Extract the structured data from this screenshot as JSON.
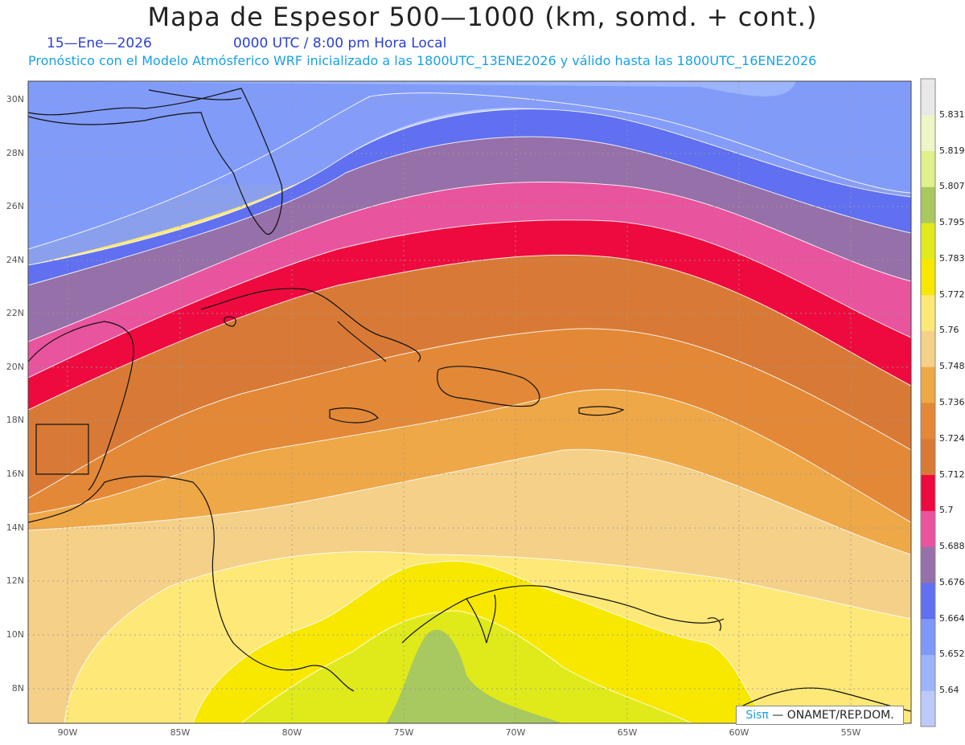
{
  "title": "Mapa de Espesor 500—1000 (km, somd. + cont.)",
  "date": "15—Ene—2026",
  "time": "0000 UTC / 8:00 pm Hora Local",
  "subtitle": "Pronóstico con el Modelo Atmósferico WRF inicializado a las 1800UTC_13ENE2026 y válido hasta las  1800UTC_16ENE2026",
  "credit": {
    "logo": "Sisπ",
    "text": "— ONAMET/REP.DOM."
  },
  "lat_labels": [
    "30N",
    "28N",
    "26N",
    "24N",
    "22N",
    "20N",
    "18N",
    "16N",
    "14N",
    "12N",
    "10N",
    "8N"
  ],
  "lon_labels": [
    "90W",
    "85W",
    "80W",
    "75W",
    "70W",
    "65W",
    "60W",
    "55W"
  ],
  "colorbar": {
    "labels": [
      "5.831",
      "5.819",
      "5.807",
      "5.795",
      "5.783",
      "5.772",
      "5.76",
      "5.748",
      "5.736",
      "5.724",
      "5.712",
      "5.7",
      "5.688",
      "5.676",
      "5.664",
      "5.652",
      "5.64"
    ],
    "colors": [
      "#e8e8e8",
      "#f0f5c8",
      "#e0f08a",
      "#a8c860",
      "#e0ea1a",
      "#f8e800",
      "#fde878",
      "#f5d088",
      "#eea848",
      "#e38836",
      "#d87a36",
      "#ee0a3e",
      "#e8549e",
      "#9670a8",
      "#6070f0",
      "#7e98f8",
      "#9cb4fa",
      "#bccafa"
    ]
  },
  "legend_icons": [
    "grid-lines",
    "coastlines",
    "contour-lines"
  ]
}
